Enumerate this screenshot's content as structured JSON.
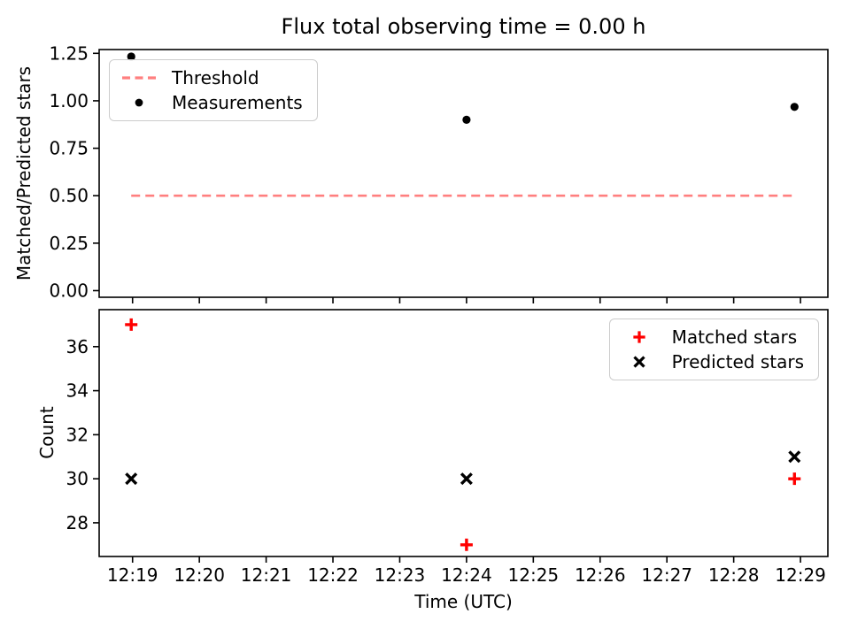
{
  "figure": {
    "title": "Flux total observing time = 0.00 h",
    "background": "#ffffff"
  },
  "colors": {
    "threshold": "#ff7f7f",
    "matched": "#ff0000",
    "measurements": "#000000",
    "predicted": "#000000",
    "axis": "#000000",
    "legend_border": "#cccccc"
  },
  "chart_data": [
    {
      "type": "scatter",
      "id": "ratio-panel",
      "title": "Flux total observing time = 0.00 h",
      "ylabel": "Matched/Predicted stars",
      "x_unit": "minutes after 12:19",
      "xlim": [
        -0.5,
        10.41
      ],
      "ylim": [
        -0.035,
        1.27
      ],
      "grid": false,
      "yticks": {
        "values": [
          0.0,
          0.25,
          0.5,
          0.75,
          1.0,
          1.25
        ],
        "labels": [
          "0.00",
          "0.25",
          "0.50",
          "0.75",
          "1.00",
          "1.25"
        ]
      },
      "threshold": {
        "label": "Threshold",
        "y": 0.5,
        "x_start": -0.02,
        "x_end": 9.91,
        "style": "dashed",
        "color": "#ff7f7f"
      },
      "series": [
        {
          "name": "Measurements",
          "marker": "dot",
          "color": "#000000",
          "x": [
            -0.02,
            5.0,
            9.91
          ],
          "y": [
            1.233,
            0.9,
            0.968
          ],
          "point_times": [
            "12:19",
            "12:24",
            "12:29"
          ]
        }
      ],
      "legend": {
        "position": "upper left",
        "entries": [
          {
            "label": "Threshold",
            "marker": "dashes",
            "color": "#ff7f7f"
          },
          {
            "label": "Measurements",
            "marker": "dot",
            "color": "#000000"
          }
        ]
      }
    },
    {
      "type": "scatter",
      "id": "count-panel",
      "ylabel": "Count",
      "xlabel": "Time (UTC)",
      "xlim": [
        -0.5,
        10.41
      ],
      "ylim": [
        26.47,
        37.68
      ],
      "grid": false,
      "xticks": {
        "values": [
          0,
          1,
          2,
          3,
          4,
          5,
          6,
          7,
          8,
          9,
          10
        ],
        "labels": [
          "12:19",
          "12:20",
          "12:21",
          "12:22",
          "12:23",
          "12:24",
          "12:25",
          "12:26",
          "12:27",
          "12:28",
          "12:29"
        ]
      },
      "yticks": {
        "values": [
          28,
          30,
          32,
          34,
          36
        ],
        "labels": [
          "28",
          "30",
          "32",
          "34",
          "36"
        ]
      },
      "series": [
        {
          "name": "Matched stars",
          "marker": "plus",
          "color": "#ff0000",
          "x": [
            -0.02,
            5.0,
            9.91
          ],
          "y": [
            37,
            27,
            30
          ],
          "point_times": [
            "12:19",
            "12:24",
            "12:29"
          ]
        },
        {
          "name": "Predicted stars",
          "marker": "x",
          "color": "#000000",
          "x": [
            -0.02,
            5.0,
            9.91
          ],
          "y": [
            30,
            30,
            31
          ],
          "point_times": [
            "12:19",
            "12:24",
            "12:29"
          ]
        }
      ],
      "legend": {
        "position": "upper right",
        "entries": [
          {
            "label": "Matched stars",
            "marker": "plus",
            "color": "#ff0000"
          },
          {
            "label": "Predicted stars",
            "marker": "x",
            "color": "#000000"
          }
        ]
      }
    }
  ]
}
